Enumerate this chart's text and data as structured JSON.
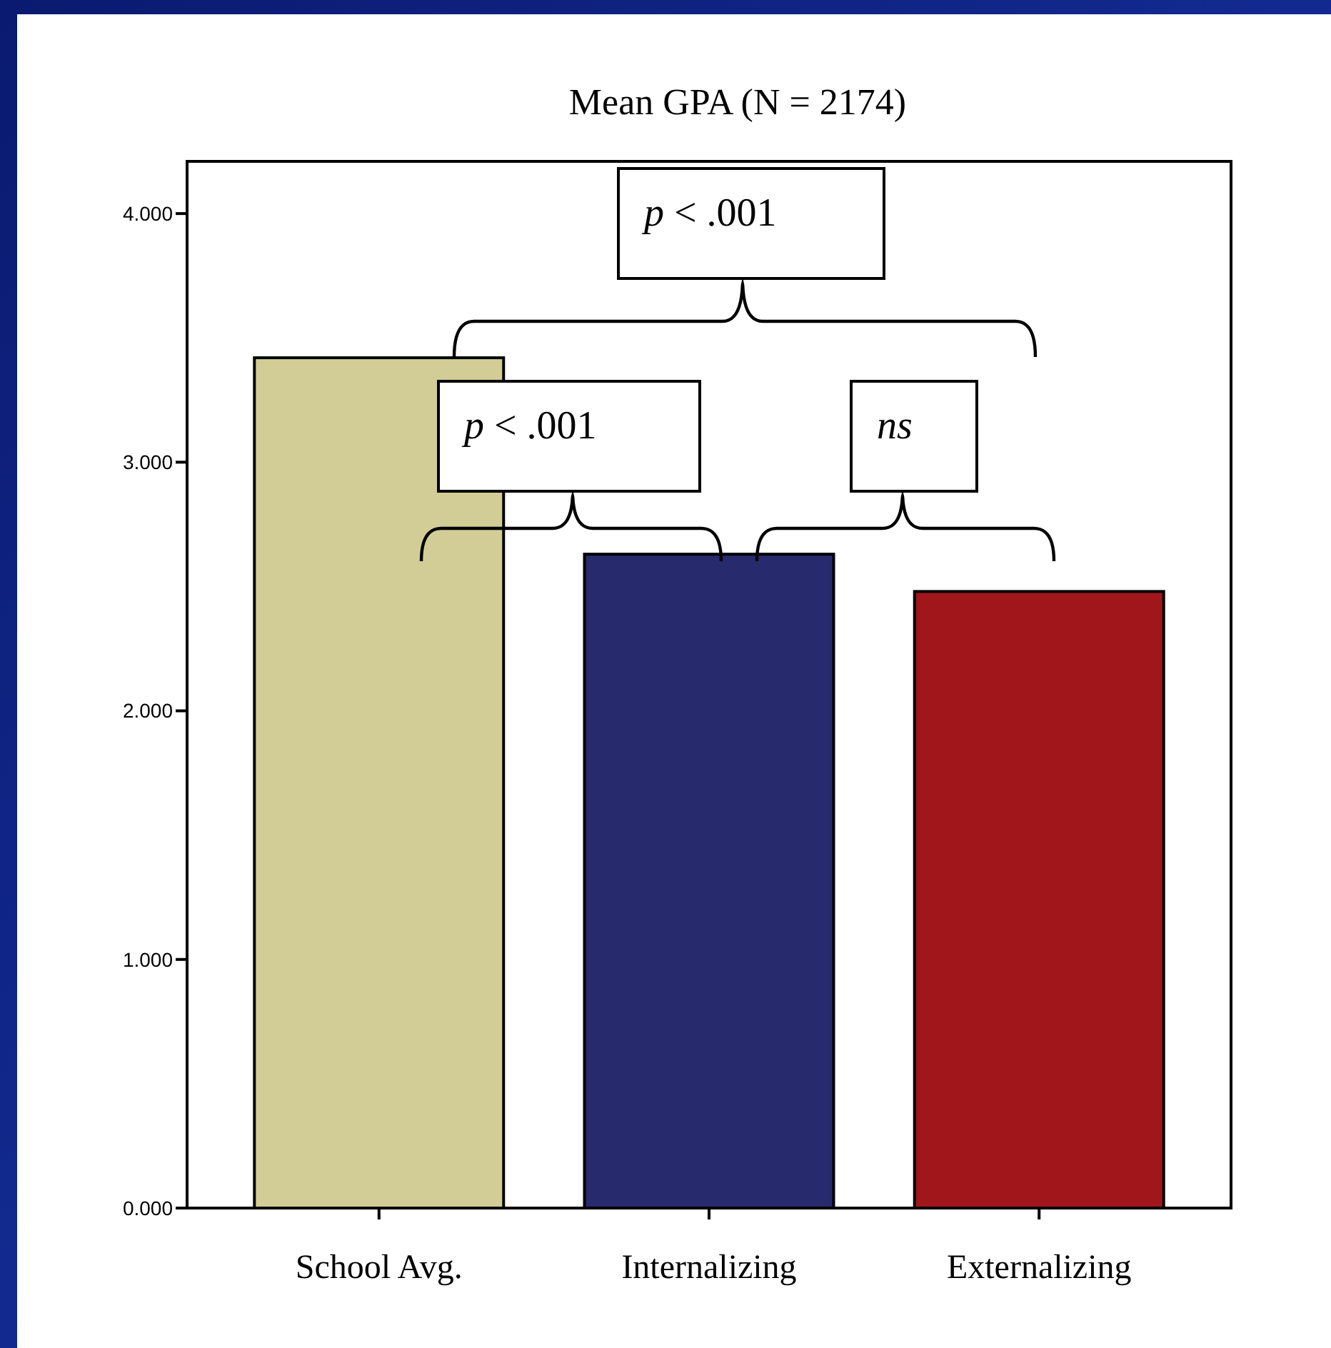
{
  "chart_data": {
    "type": "bar",
    "title": "Mean GPA (N = 2174)",
    "categories": [
      "School Avg.",
      "Internalizing",
      "Externalizing"
    ],
    "values": [
      3.42,
      2.63,
      2.48
    ],
    "colors": [
      "#d2cd96",
      "#282a6e",
      "#a0161b"
    ],
    "ylim": [
      0,
      4.21
    ],
    "yticks": [
      {
        "value": 0,
        "label": "0.000"
      },
      {
        "value": 1,
        "label": "1.000"
      },
      {
        "value": 2,
        "label": "2.000"
      },
      {
        "value": 3,
        "label": "3.000"
      },
      {
        "value": 4,
        "label": "4.000"
      }
    ],
    "grid": false,
    "annotations": [
      "p < .001",
      "p < .001",
      "ns"
    ]
  }
}
